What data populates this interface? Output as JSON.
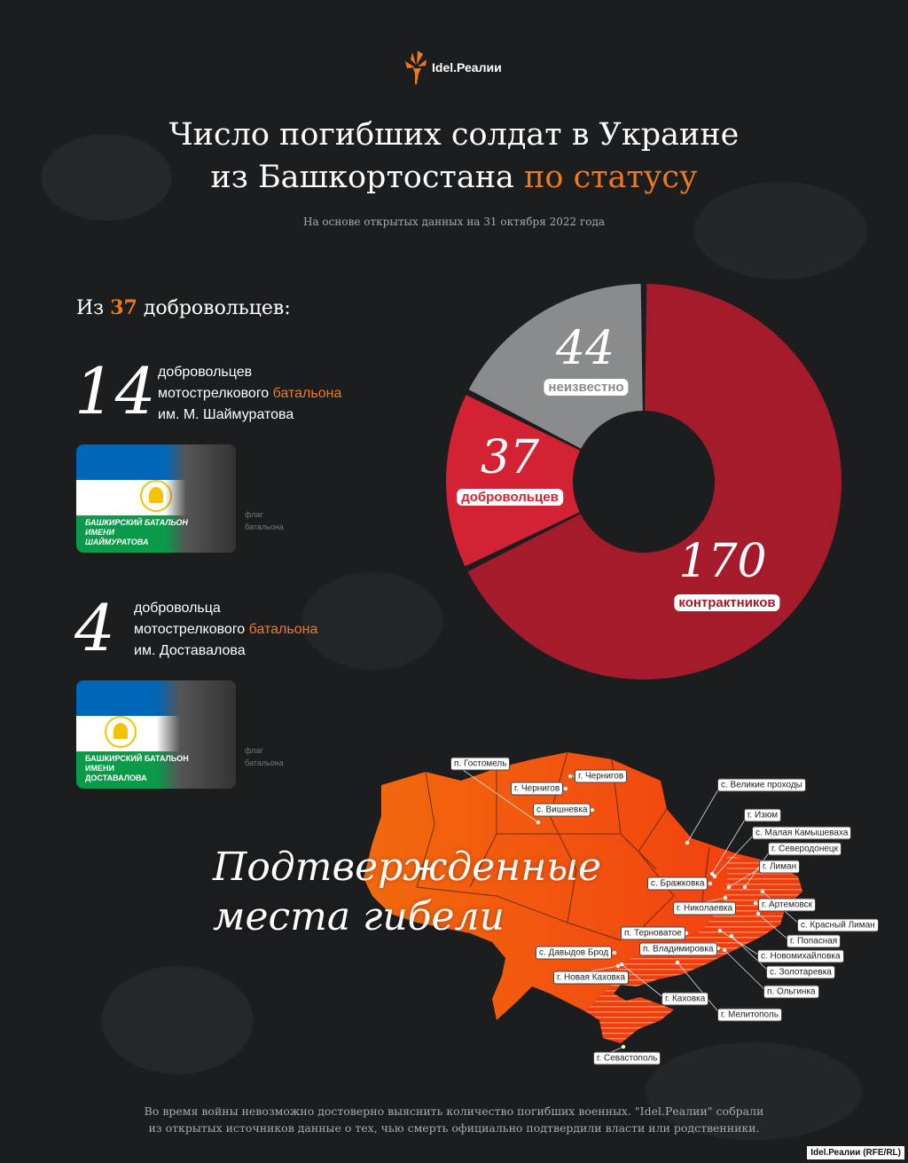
{
  "brand": {
    "name": "Idel.Реалии",
    "credit": "Idel.Реалии (RFE/RL)",
    "accent": "#f07a1a"
  },
  "title": {
    "line1": "Число погибших солдат в Украине",
    "line2_plain": "из Башкортостана",
    "line2_accent": "по статусу"
  },
  "subtitle": "На основе открытых данных на 31 октября 2022 года",
  "volunteers": {
    "intro_prefix": "Из",
    "intro_number": "37",
    "intro_suffix": "добровольцев:",
    "groups": [
      {
        "number": "14",
        "line1": "добровольцев",
        "line2_plain": "мотострелкового",
        "line2_accent": "батальона",
        "line3": "им. М. Шаймуратова",
        "flag_text": [
          "Башкирский батальон",
          "имени",
          "Шаймуратова"
        ],
        "caption": [
          "флаг",
          "батальона"
        ]
      },
      {
        "number": "4",
        "line1": "добровольца",
        "line2_plain": "мотострелкового",
        "line2_accent": "батальона",
        "line3": "им. Доставалова",
        "flag_text": [
          "Башкирский батальон",
          "имени",
          "Доставалова"
        ],
        "caption": [
          "флаг",
          "батальона"
        ]
      }
    ]
  },
  "chart_data": {
    "type": "pie",
    "donut": true,
    "categories": [
      "контрактников",
      "добровольцев",
      "неизвестно"
    ],
    "values": [
      170,
      37,
      44
    ],
    "labels": [
      "170",
      "37",
      "44"
    ],
    "colors": [
      "#a51b2b",
      "#d42235",
      "#8a8b8d"
    ]
  },
  "map": {
    "title_line1": "Подтвержденные",
    "title_line2": "места гибели",
    "places": [
      "п. Гостомель",
      "г. Чернигов",
      "г. Чернигов",
      "с. Вишневка",
      "с. Великие проходы",
      "г. Изюм",
      "с. Малая Камышеваха",
      "г. Северодонецк",
      "г. Лиман",
      "с. Бражковка",
      "г. Николаевка",
      "г. Артемовск",
      "с. Красный Лиман",
      "г. Попасная",
      "п. Терноватое",
      "с. Давыдов Брод",
      "п. Владимировка",
      "с. Новомихайловка",
      "с. Золотаревка",
      "г. Новая Каховка",
      "п. Ольгинка",
      "г. Каховка",
      "г. Мелитополь",
      "г. Севастополь"
    ]
  },
  "footer": {
    "line1": "Во время войны невозможно достоверно выяснить количество погибших военных. \"Idel.Реалии\" собрали",
    "line2": "из открытых источников данные о тех, чью смерть официально подтвердили власти или родственники."
  }
}
